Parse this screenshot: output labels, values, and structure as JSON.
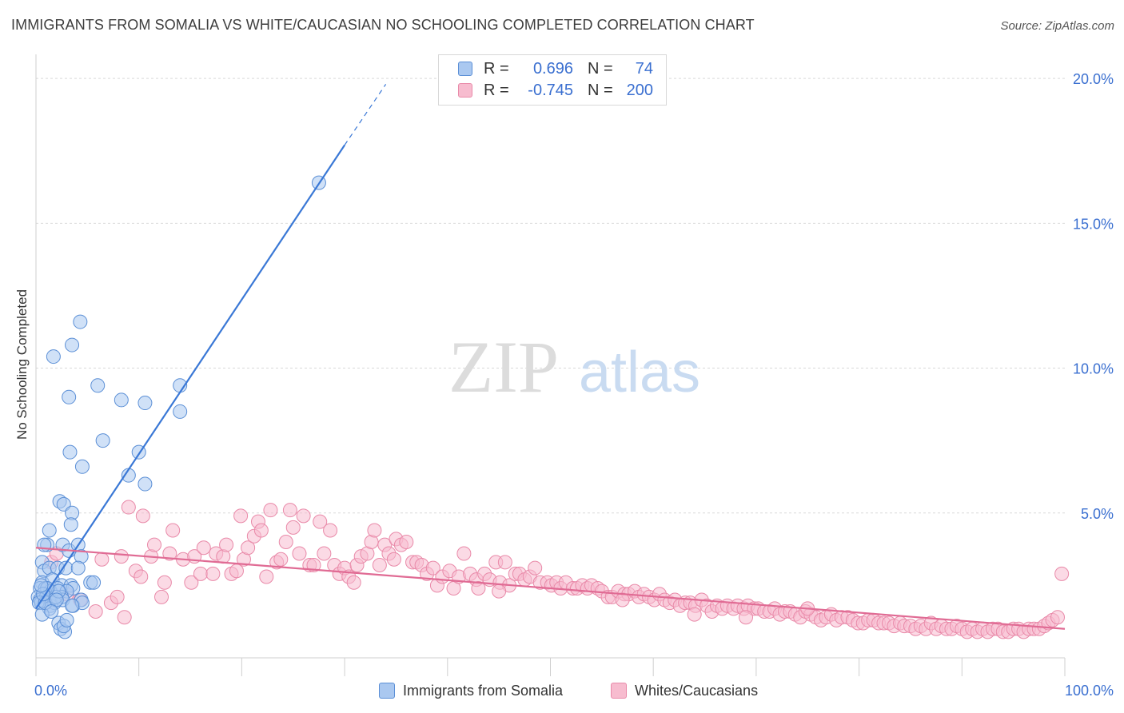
{
  "title": "IMMIGRANTS FROM SOMALIA VS WHITE/CAUCASIAN NO SCHOOLING COMPLETED CORRELATION CHART",
  "source": "Source: ZipAtlas.com",
  "watermark": {
    "zip": "ZIP",
    "atlas": "atlas"
  },
  "colors": {
    "somalia_fill": "#aac8f0",
    "somalia_stroke": "#5b8fd6",
    "somalia_line": "#3a78d6",
    "white_fill": "#f7bccf",
    "white_stroke": "#e98aa9",
    "white_line": "#e06b94",
    "axis_text": "#3a6fd0",
    "grid": "#d9d9d9"
  },
  "legend": {
    "r_label": "R =",
    "n_label": "N =",
    "rows": [
      {
        "r": "0.696",
        "n": "74"
      },
      {
        "r": "-0.745",
        "n": "200"
      }
    ]
  },
  "chart_data": {
    "type": "scatter",
    "title": "IMMIGRANTS FROM SOMALIA VS WHITE/CAUCASIAN NO SCHOOLING COMPLETED CORRELATION CHART",
    "xlabel": "",
    "ylabel": "No Schooling Completed",
    "xlim": [
      0,
      100
    ],
    "ylim": [
      0,
      20.5
    ],
    "x_tick_labels": [
      "0.0%",
      "100.0%"
    ],
    "y_ticks": [
      5,
      10,
      15,
      20
    ],
    "y_tick_labels": [
      "5.0%",
      "10.0%",
      "15.0%",
      "20.0%"
    ],
    "grid": true,
    "legend_position": "top-center",
    "series": [
      {
        "name": "Immigrants from Somalia",
        "r": 0.696,
        "n": 74,
        "trend": {
          "x0": 0,
          "y0": 1.7,
          "x1": 30,
          "y1": 17.7,
          "dashed_to_x": 34,
          "dashed_to_y": 19.8
        },
        "points": [
          [
            4.3,
            11.6
          ],
          [
            3.5,
            10.8
          ],
          [
            1.7,
            10.4
          ],
          [
            3.2,
            9.0
          ],
          [
            6.0,
            9.4
          ],
          [
            8.3,
            8.9
          ],
          [
            10.6,
            8.8
          ],
          [
            14.0,
            8.5
          ],
          [
            6.5,
            7.5
          ],
          [
            10.0,
            7.1
          ],
          [
            3.3,
            7.1
          ],
          [
            4.5,
            6.6
          ],
          [
            9.0,
            6.3
          ],
          [
            10.6,
            6.0
          ],
          [
            2.3,
            5.4
          ],
          [
            2.7,
            5.3
          ],
          [
            3.5,
            5.0
          ],
          [
            3.4,
            4.6
          ],
          [
            1.3,
            4.4
          ],
          [
            1.1,
            3.9
          ],
          [
            2.6,
            3.9
          ],
          [
            3.2,
            3.7
          ],
          [
            4.1,
            3.9
          ],
          [
            4.4,
            3.5
          ],
          [
            0.6,
            3.3
          ],
          [
            0.8,
            3.0
          ],
          [
            1.3,
            3.1
          ],
          [
            2.1,
            3.1
          ],
          [
            2.9,
            3.1
          ],
          [
            4.1,
            3.1
          ],
          [
            0.6,
            2.6
          ],
          [
            1.6,
            2.7
          ],
          [
            2.5,
            2.5
          ],
          [
            3.4,
            2.5
          ],
          [
            3.6,
            2.4
          ],
          [
            5.3,
            2.6
          ],
          [
            5.6,
            2.6
          ],
          [
            0.4,
            2.4
          ],
          [
            0.9,
            2.4
          ],
          [
            1.4,
            2.3
          ],
          [
            2.1,
            2.4
          ],
          [
            3.0,
            2.3
          ],
          [
            0.2,
            2.1
          ],
          [
            0.4,
            2.0
          ],
          [
            1.0,
            2.1
          ],
          [
            1.4,
            2.0
          ],
          [
            2.5,
            2.1
          ],
          [
            2.6,
            2.0
          ],
          [
            0.5,
            1.9
          ],
          [
            1.4,
            1.8
          ],
          [
            1.8,
            1.9
          ],
          [
            3.6,
            1.8
          ],
          [
            4.4,
            2.0
          ],
          [
            4.5,
            1.9
          ],
          [
            1.3,
            1.7
          ],
          [
            3.5,
            1.8
          ],
          [
            0.3,
            1.9
          ],
          [
            0.6,
            1.5
          ],
          [
            2.2,
            1.2
          ],
          [
            2.4,
            1.0
          ],
          [
            2.8,
            0.9
          ],
          [
            2.7,
            1.1
          ],
          [
            0.9,
            1.9
          ],
          [
            1.9,
            2.1
          ],
          [
            2.2,
            2.3
          ],
          [
            27.5,
            16.4
          ],
          [
            14.0,
            9.4
          ],
          [
            2.0,
            2.0
          ],
          [
            1.1,
            2.4
          ],
          [
            0.7,
            2.2
          ],
          [
            3.0,
            1.3
          ],
          [
            1.5,
            1.6
          ],
          [
            0.8,
            3.9
          ],
          [
            0.5,
            2.5
          ]
        ]
      },
      {
        "name": "Whites/Caucasians",
        "r": -0.745,
        "n": 200,
        "trend": {
          "x0": 0,
          "y0": 3.8,
          "x1": 100,
          "y1": 1.0
        },
        "points": [
          [
            1.5,
            3.3
          ],
          [
            2.0,
            3.6
          ],
          [
            3.0,
            2.2
          ],
          [
            4.3,
            2.0
          ],
          [
            5.8,
            1.6
          ],
          [
            6.4,
            3.4
          ],
          [
            7.3,
            1.9
          ],
          [
            7.9,
            2.1
          ],
          [
            8.3,
            3.5
          ],
          [
            8.6,
            1.4
          ],
          [
            9.0,
            5.2
          ],
          [
            9.7,
            3.0
          ],
          [
            10.2,
            2.8
          ],
          [
            10.4,
            4.9
          ],
          [
            11.2,
            3.5
          ],
          [
            11.5,
            3.9
          ],
          [
            12.2,
            2.1
          ],
          [
            12.5,
            2.6
          ],
          [
            13.0,
            3.6
          ],
          [
            13.3,
            4.4
          ],
          [
            14.3,
            3.4
          ],
          [
            15.1,
            2.6
          ],
          [
            15.4,
            3.5
          ],
          [
            16.0,
            2.9
          ],
          [
            16.3,
            3.8
          ],
          [
            17.2,
            2.9
          ],
          [
            17.5,
            3.6
          ],
          [
            18.2,
            3.5
          ],
          [
            18.5,
            3.9
          ],
          [
            19.0,
            2.9
          ],
          [
            19.5,
            3.0
          ],
          [
            19.9,
            4.9
          ],
          [
            20.2,
            3.4
          ],
          [
            20.6,
            3.8
          ],
          [
            21.2,
            4.2
          ],
          [
            21.6,
            4.7
          ],
          [
            21.9,
            4.4
          ],
          [
            22.4,
            2.8
          ],
          [
            22.8,
            5.1
          ],
          [
            23.4,
            3.3
          ],
          [
            23.8,
            3.4
          ],
          [
            24.3,
            4.0
          ],
          [
            24.7,
            5.1
          ],
          [
            25.0,
            4.5
          ],
          [
            25.6,
            3.6
          ],
          [
            26.0,
            4.9
          ],
          [
            26.6,
            3.2
          ],
          [
            27.0,
            3.2
          ],
          [
            27.6,
            4.7
          ],
          [
            28.0,
            3.6
          ],
          [
            28.6,
            4.4
          ],
          [
            29.0,
            3.2
          ],
          [
            29.5,
            2.9
          ],
          [
            30.0,
            3.1
          ],
          [
            30.4,
            2.8
          ],
          [
            30.9,
            2.6
          ],
          [
            31.2,
            3.2
          ],
          [
            31.6,
            3.5
          ],
          [
            32.2,
            3.6
          ],
          [
            32.6,
            4.0
          ],
          [
            32.9,
            4.4
          ],
          [
            33.4,
            3.2
          ],
          [
            33.9,
            3.9
          ],
          [
            34.3,
            3.6
          ],
          [
            34.8,
            3.4
          ],
          [
            35.0,
            4.1
          ],
          [
            35.5,
            3.9
          ],
          [
            36.0,
            4.0
          ],
          [
            36.6,
            3.3
          ],
          [
            37.0,
            3.3
          ],
          [
            37.5,
            3.2
          ],
          [
            38.0,
            2.9
          ],
          [
            38.6,
            3.1
          ],
          [
            39.0,
            2.5
          ],
          [
            39.5,
            2.8
          ],
          [
            40.2,
            3.0
          ],
          [
            40.6,
            2.4
          ],
          [
            41.1,
            2.8
          ],
          [
            41.6,
            3.6
          ],
          [
            42.2,
            2.9
          ],
          [
            42.8,
            2.7
          ],
          [
            43.0,
            2.4
          ],
          [
            43.6,
            2.9
          ],
          [
            44.1,
            2.7
          ],
          [
            44.7,
            3.3
          ],
          [
            45.1,
            2.6
          ],
          [
            45.6,
            3.3
          ],
          [
            46.0,
            2.5
          ],
          [
            46.6,
            2.9
          ],
          [
            47.0,
            2.9
          ],
          [
            47.5,
            2.7
          ],
          [
            48.0,
            2.8
          ],
          [
            48.5,
            3.1
          ],
          [
            49.0,
            2.6
          ],
          [
            49.7,
            2.6
          ],
          [
            50.1,
            2.5
          ],
          [
            50.6,
            2.6
          ],
          [
            51.0,
            2.4
          ],
          [
            51.5,
            2.6
          ],
          [
            52.2,
            2.4
          ],
          [
            52.6,
            2.4
          ],
          [
            53.1,
            2.5
          ],
          [
            53.6,
            2.4
          ],
          [
            54.0,
            2.5
          ],
          [
            54.6,
            2.4
          ],
          [
            55.0,
            2.3
          ],
          [
            55.6,
            2.1
          ],
          [
            56.0,
            2.1
          ],
          [
            56.6,
            2.3
          ],
          [
            57.2,
            2.2
          ],
          [
            57.6,
            2.2
          ],
          [
            58.2,
            2.3
          ],
          [
            58.6,
            2.1
          ],
          [
            59.1,
            2.2
          ],
          [
            59.6,
            2.1
          ],
          [
            60.1,
            2.0
          ],
          [
            60.6,
            2.2
          ],
          [
            61.1,
            2.0
          ],
          [
            61.6,
            1.9
          ],
          [
            62.1,
            2.0
          ],
          [
            62.6,
            1.8
          ],
          [
            63.1,
            1.9
          ],
          [
            63.6,
            1.9
          ],
          [
            64.1,
            1.8
          ],
          [
            64.7,
            2.0
          ],
          [
            65.2,
            1.8
          ],
          [
            65.7,
            1.6
          ],
          [
            66.2,
            1.8
          ],
          [
            66.7,
            1.7
          ],
          [
            67.2,
            1.8
          ],
          [
            67.8,
            1.7
          ],
          [
            68.2,
            1.8
          ],
          [
            68.8,
            1.7
          ],
          [
            69.2,
            1.8
          ],
          [
            69.8,
            1.7
          ],
          [
            70.2,
            1.7
          ],
          [
            70.8,
            1.6
          ],
          [
            71.3,
            1.6
          ],
          [
            71.8,
            1.7
          ],
          [
            72.3,
            1.5
          ],
          [
            72.8,
            1.6
          ],
          [
            73.3,
            1.6
          ],
          [
            73.8,
            1.5
          ],
          [
            74.3,
            1.4
          ],
          [
            74.8,
            1.6
          ],
          [
            75.3,
            1.5
          ],
          [
            75.8,
            1.4
          ],
          [
            76.3,
            1.3
          ],
          [
            76.8,
            1.4
          ],
          [
            77.3,
            1.5
          ],
          [
            77.8,
            1.3
          ],
          [
            78.3,
            1.4
          ],
          [
            78.9,
            1.4
          ],
          [
            79.4,
            1.3
          ],
          [
            79.9,
            1.2
          ],
          [
            80.4,
            1.2
          ],
          [
            80.9,
            1.3
          ],
          [
            81.4,
            1.3
          ],
          [
            81.9,
            1.2
          ],
          [
            82.4,
            1.2
          ],
          [
            82.9,
            1.2
          ],
          [
            83.4,
            1.1
          ],
          [
            84.0,
            1.2
          ],
          [
            84.4,
            1.1
          ],
          [
            85.0,
            1.1
          ],
          [
            85.5,
            1.0
          ],
          [
            86.0,
            1.1
          ],
          [
            86.5,
            1.0
          ],
          [
            87.0,
            1.2
          ],
          [
            87.5,
            1.0
          ],
          [
            88.0,
            1.1
          ],
          [
            88.5,
            1.0
          ],
          [
            89.0,
            1.0
          ],
          [
            89.5,
            1.1
          ],
          [
            90.0,
            1.0
          ],
          [
            90.5,
            0.9
          ],
          [
            91.0,
            1.0
          ],
          [
            91.5,
            0.9
          ],
          [
            92.0,
            1.0
          ],
          [
            92.5,
            0.9
          ],
          [
            93.0,
            1.0
          ],
          [
            93.5,
            1.0
          ],
          [
            94.0,
            0.9
          ],
          [
            94.5,
            0.9
          ],
          [
            95.0,
            1.0
          ],
          [
            95.5,
            1.0
          ],
          [
            96.0,
            0.9
          ],
          [
            96.5,
            1.0
          ],
          [
            97.0,
            1.0
          ],
          [
            97.5,
            1.0
          ],
          [
            98.0,
            1.1
          ],
          [
            98.4,
            1.2
          ],
          [
            98.8,
            1.3
          ],
          [
            99.3,
            1.4
          ],
          [
            99.7,
            2.9
          ],
          [
            69.0,
            1.4
          ],
          [
            75.0,
            1.7
          ],
          [
            64.0,
            1.5
          ],
          [
            57.0,
            2.0
          ],
          [
            45.0,
            2.3
          ]
        ]
      }
    ]
  }
}
